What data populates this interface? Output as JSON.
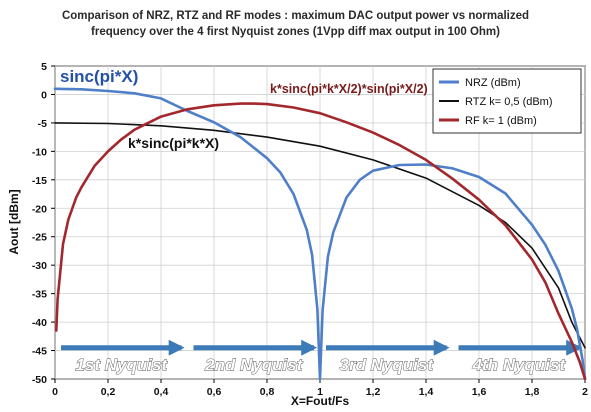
{
  "chart_data": {
    "type": "line",
    "title_lines": [
      "Comparison of  NRZ, RTZ and RF modes : maximum DAC output power vs normalized",
      "frequency over the 4 first Nyquist zones (1Vpp diff max output in 100 Ohm)"
    ],
    "xlabel": "X=Fout/Fs",
    "ylabel": "Aout [dBm]",
    "xlim": [
      0,
      2
    ],
    "ylim": [
      -50,
      5
    ],
    "xticks": [
      "0",
      "0,2",
      "0,4",
      "0,6",
      "0,8",
      "1",
      "1,2",
      "1,4",
      "1,6",
      "1,8",
      "2"
    ],
    "yticks": [
      "5",
      "0",
      "-5",
      "-10",
      "-15",
      "-20",
      "-25",
      "-30",
      "-35",
      "-40",
      "-45",
      "-50"
    ],
    "grid": true,
    "legend_position": "top-right",
    "series": [
      {
        "name": "NRZ (dBm)",
        "color": "#4f7fc8",
        "x": [
          0,
          0.1,
          0.2,
          0.3,
          0.4,
          0.5,
          0.6,
          0.7,
          0.8,
          0.85,
          0.9,
          0.95,
          0.97,
          0.99,
          1.0,
          1.01,
          1.03,
          1.05,
          1.1,
          1.15,
          1.2,
          1.3,
          1.4,
          1.5,
          1.6,
          1.7,
          1.8,
          1.85,
          1.9,
          1.95,
          1.97,
          1.99,
          2.0
        ],
        "y": [
          1,
          0.9,
          0.6,
          0.2,
          -0.7,
          -2.9,
          -4.9,
          -7.5,
          -11.2,
          -13.7,
          -17.5,
          -23.8,
          -28.2,
          -37.8,
          -50,
          -37.9,
          -28.5,
          -24.2,
          -18.1,
          -15.0,
          -13.4,
          -12.4,
          -12.3,
          -13.0,
          -14.5,
          -17.4,
          -22.9,
          -26.4,
          -31.0,
          -37.6,
          -41.2,
          -46.5,
          -50
        ]
      },
      {
        "name": "RTZ k= 0,5 (dBm)",
        "color": "#111111",
        "x": [
          0,
          0.2,
          0.4,
          0.6,
          0.8,
          1.0,
          1.2,
          1.4,
          1.6,
          1.7,
          1.8,
          1.9,
          1.95,
          2.0
        ],
        "y": [
          -5,
          -5.1,
          -5.5,
          -6.3,
          -7.5,
          -9.1,
          -11.5,
          -14.7,
          -19.5,
          -22.5,
          -27.0,
          -34.0,
          -40.0,
          -44.5
        ]
      },
      {
        "name": "RF k= 1 (dBm)",
        "color": "#a3282d",
        "x": [
          0.005,
          0.01,
          0.03,
          0.05,
          0.08,
          0.1,
          0.15,
          0.2,
          0.25,
          0.3,
          0.4,
          0.5,
          0.6,
          0.7,
          0.75,
          0.8,
          0.9,
          1.0,
          1.1,
          1.2,
          1.3,
          1.4,
          1.5,
          1.6,
          1.7,
          1.8,
          1.85,
          1.9,
          1.95,
          1.98,
          2.0
        ],
        "y": [
          -41.5,
          -36,
          -26.3,
          -22,
          -18.1,
          -16.3,
          -12.5,
          -10.0,
          -7.9,
          -6.2,
          -3.9,
          -2.6,
          -1.9,
          -1.6,
          -1.6,
          -1.7,
          -2.3,
          -3.3,
          -4.9,
          -6.7,
          -8.9,
          -11.5,
          -14.8,
          -18.5,
          -23.0,
          -29.0,
          -33.0,
          -38.5,
          -43.5,
          -47.0,
          -50
        ]
      }
    ],
    "annotations": [
      {
        "text": "sinc(pi*X)",
        "color": "#2451a8"
      },
      {
        "text": "k*sinc(pi*k*X)",
        "color": "#111111"
      },
      {
        "text": "k*sinc(pi*k*X/2)*sin(pi*X/2)",
        "color": "#7a1a1a"
      }
    ],
    "nyquist_zones": [
      "1st Nyquist",
      "2nd Nyquist",
      "3rd Nyquist",
      "4th Nyquist"
    ]
  }
}
